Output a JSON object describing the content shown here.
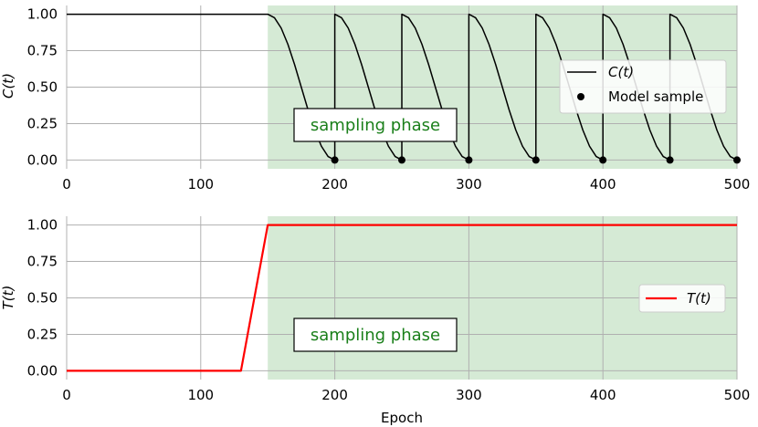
{
  "colors": {
    "phase_fill": "#d5ead5",
    "phase_text": "#1a7f1a",
    "grid": "#b0b0b0",
    "c_line": "#000000",
    "t_line": "#ff0000",
    "marker": "#000000"
  },
  "chart_data": [
    {
      "type": "line",
      "ylabel": "C(t)",
      "xlim": [
        0,
        500
      ],
      "ylim": [
        -0.06,
        1.06
      ],
      "x_ticks": [
        "0",
        "100",
        "200",
        "300",
        "400",
        "500"
      ],
      "y_ticks": [
        "0.00",
        "0.25",
        "0.50",
        "0.75",
        "1.00"
      ],
      "x_tick_values": [
        0,
        100,
        200,
        300,
        400,
        500
      ],
      "y_tick_values": [
        0,
        0.25,
        0.5,
        0.75,
        1.0
      ],
      "shaded_region": {
        "x": [
          150,
          500
        ],
        "label": "sampling phase"
      },
      "grid": true,
      "legend_position": "right",
      "series": [
        {
          "name": "C(t)",
          "kind": "line",
          "x": [
            0,
            150,
            155,
            160,
            165,
            170,
            175,
            180,
            185,
            190,
            195,
            200,
            200,
            205,
            210,
            215,
            220,
            225,
            230,
            235,
            240,
            245,
            250,
            250,
            255,
            260,
            265,
            270,
            275,
            280,
            285,
            290,
            295,
            300,
            300,
            305,
            310,
            315,
            320,
            325,
            330,
            335,
            340,
            345,
            350,
            350,
            355,
            360,
            365,
            370,
            375,
            380,
            385,
            390,
            395,
            400,
            400,
            405,
            410,
            415,
            420,
            425,
            430,
            435,
            440,
            445,
            450,
            450,
            455,
            460,
            465,
            470,
            475,
            480,
            485,
            490,
            495,
            500
          ],
          "y": [
            1.0,
            1.0,
            0.976,
            0.905,
            0.794,
            0.655,
            0.5,
            0.345,
            0.206,
            0.095,
            0.024,
            0.0,
            1.0,
            0.976,
            0.905,
            0.794,
            0.655,
            0.5,
            0.345,
            0.206,
            0.095,
            0.024,
            0.0,
            1.0,
            0.976,
            0.905,
            0.794,
            0.655,
            0.5,
            0.345,
            0.206,
            0.095,
            0.024,
            0.0,
            1.0,
            0.976,
            0.905,
            0.794,
            0.655,
            0.5,
            0.345,
            0.206,
            0.095,
            0.024,
            0.0,
            1.0,
            0.976,
            0.905,
            0.794,
            0.655,
            0.5,
            0.345,
            0.206,
            0.095,
            0.024,
            0.0,
            1.0,
            0.976,
            0.905,
            0.794,
            0.655,
            0.5,
            0.345,
            0.206,
            0.095,
            0.024,
            0.0,
            1.0,
            0.976,
            0.905,
            0.794,
            0.655,
            0.5,
            0.345,
            0.206,
            0.095,
            0.024,
            0.0
          ]
        },
        {
          "name": "Model sample",
          "kind": "scatter",
          "x": [
            200,
            250,
            300,
            350,
            400,
            450,
            500
          ],
          "y": [
            0,
            0,
            0,
            0,
            0,
            0,
            0
          ]
        }
      ]
    },
    {
      "type": "line",
      "xlabel": "Epoch",
      "ylabel": "T(t)",
      "xlim": [
        0,
        500
      ],
      "ylim": [
        -0.06,
        1.06
      ],
      "x_ticks": [
        "0",
        "100",
        "200",
        "300",
        "400",
        "500"
      ],
      "y_ticks": [
        "0.00",
        "0.25",
        "0.50",
        "0.75",
        "1.00"
      ],
      "x_tick_values": [
        0,
        100,
        200,
        300,
        400,
        500
      ],
      "y_tick_values": [
        0,
        0.25,
        0.5,
        0.75,
        1.0
      ],
      "shaded_region": {
        "x": [
          150,
          500
        ],
        "label": "sampling phase"
      },
      "grid": true,
      "legend_position": "right",
      "series": [
        {
          "name": "T(t)",
          "kind": "line",
          "x": [
            0,
            130,
            150,
            500
          ],
          "y": [
            0,
            0,
            1,
            1
          ]
        }
      ]
    }
  ]
}
